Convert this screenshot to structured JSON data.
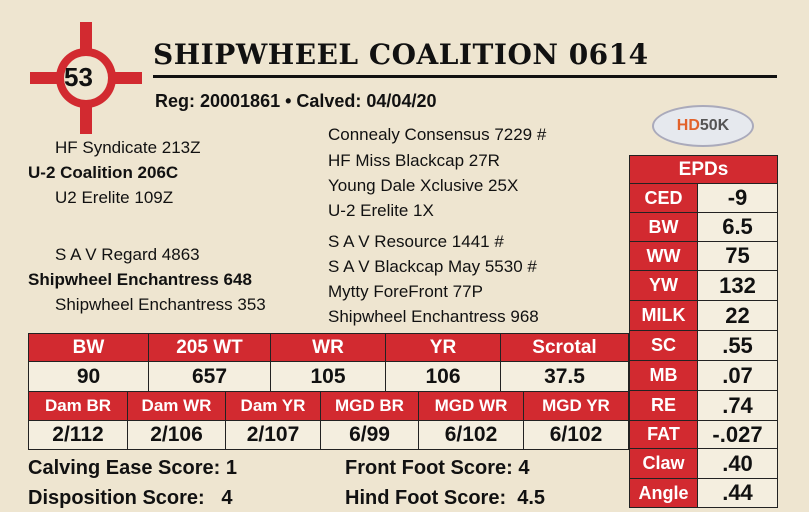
{
  "lot_number": "53",
  "title": "SHIPWHEEL COALITION 0614",
  "reg_line": "Reg: 20001861 • Calved: 04/04/20",
  "logo_text": "HD50K",
  "pedigree": {
    "sire": "U-2 Coalition 206C",
    "sire_sire": "HF Syndicate 213Z",
    "sire_dam": "U2 Erelite 109Z",
    "dam": "Shipwheel Enchantress 648",
    "dam_sire": "S A V Regard 4863",
    "dam_dam": "Shipwheel Enchantress 353",
    "grand": [
      "Connealy Consensus 7229 #",
      "HF Miss Blackcap 27R",
      "Young Dale Xclusive 25X",
      "U-2 Erelite 1X",
      "S A V Resource 1441 #",
      "S A V Blackcap May 5530 #",
      "Mytty ForeFront 77P",
      "Shipwheel Enchantress 968"
    ]
  },
  "performance": {
    "headers1": [
      "BW",
      "205 WT",
      "WR",
      "YR",
      "Scrotal"
    ],
    "values1": [
      "90",
      "657",
      "105",
      "106",
      "37.5"
    ],
    "headers2": [
      "Dam BR",
      "Dam WR",
      "Dam YR",
      "MGD BR",
      "MGD WR",
      "MGD YR"
    ],
    "values2": [
      "2/112",
      "2/106",
      "2/107",
      "6/99",
      "6/102",
      "6/102"
    ]
  },
  "epds": {
    "header": "EPDs",
    "rows": [
      [
        "CED",
        "-9"
      ],
      [
        "BW",
        "6.5"
      ],
      [
        "WW",
        "75"
      ],
      [
        "YW",
        "132"
      ],
      [
        "MILK",
        "22"
      ],
      [
        "SC",
        ".55"
      ],
      [
        "MB",
        ".07"
      ],
      [
        "RE",
        ".74"
      ],
      [
        "FAT",
        "-.027"
      ],
      [
        "Claw",
        ".40"
      ],
      [
        "Angle",
        ".44"
      ]
    ]
  },
  "scores": {
    "calving_ease": "Calving Ease Score: 1",
    "disposition": "Disposition Score:   4",
    "front_foot": "Front Foot Score: 4",
    "hind_foot": "Hind Foot Score:  4.5"
  },
  "colors": {
    "accent": "#d22a30",
    "background": "#eee5d0"
  }
}
